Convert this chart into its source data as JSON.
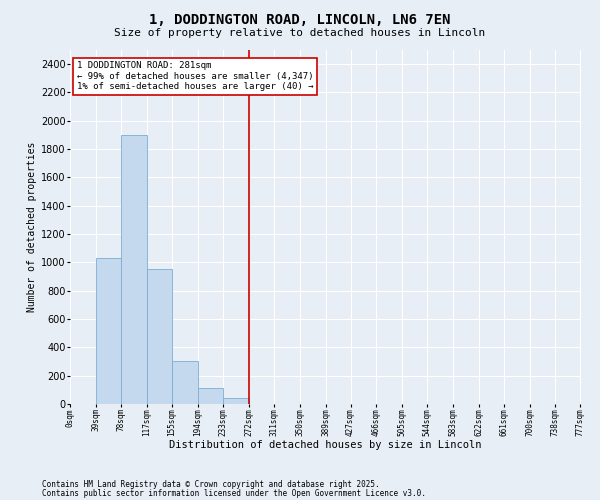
{
  "title": "1, DODDINGTON ROAD, LINCOLN, LN6 7EN",
  "subtitle": "Size of property relative to detached houses in Lincoln",
  "xlabel": "Distribution of detached houses by size in Lincoln",
  "ylabel": "Number of detached properties",
  "bar_color": "#c5d9ee",
  "bar_edge_color": "#7baed4",
  "background_color": "#e8eef5",
  "grid_color": "#ffffff",
  "annotation_box_color": "#cc0000",
  "vline_color": "#cc0000",
  "vline_x": 272,
  "bin_edges": [
    0,
    39,
    78,
    117,
    155,
    194,
    233,
    272,
    311,
    350,
    389,
    427,
    466,
    505,
    544,
    583,
    622,
    661,
    700,
    738,
    777
  ],
  "bin_labels": [
    "0sqm",
    "39sqm",
    "78sqm",
    "117sqm",
    "155sqm",
    "194sqm",
    "233sqm",
    "272sqm",
    "311sqm",
    "350sqm",
    "389sqm",
    "427sqm",
    "466sqm",
    "505sqm",
    "544sqm",
    "583sqm",
    "622sqm",
    "661sqm",
    "700sqm",
    "738sqm",
    "777sqm"
  ],
  "bar_heights": [
    0,
    1030,
    1900,
    950,
    300,
    110,
    40,
    0,
    0,
    0,
    0,
    0,
    0,
    0,
    0,
    0,
    0,
    0,
    0,
    0
  ],
  "ylim": [
    0,
    2500
  ],
  "yticks": [
    0,
    200,
    400,
    600,
    800,
    1000,
    1200,
    1400,
    1600,
    1800,
    2000,
    2200,
    2400
  ],
  "annotation_text": "1 DODDINGTON ROAD: 281sqm\n← 99% of detached houses are smaller (4,347)\n1% of semi-detached houses are larger (40) →",
  "footnote1": "Contains HM Land Registry data © Crown copyright and database right 2025.",
  "footnote2": "Contains public sector information licensed under the Open Government Licence v3.0."
}
